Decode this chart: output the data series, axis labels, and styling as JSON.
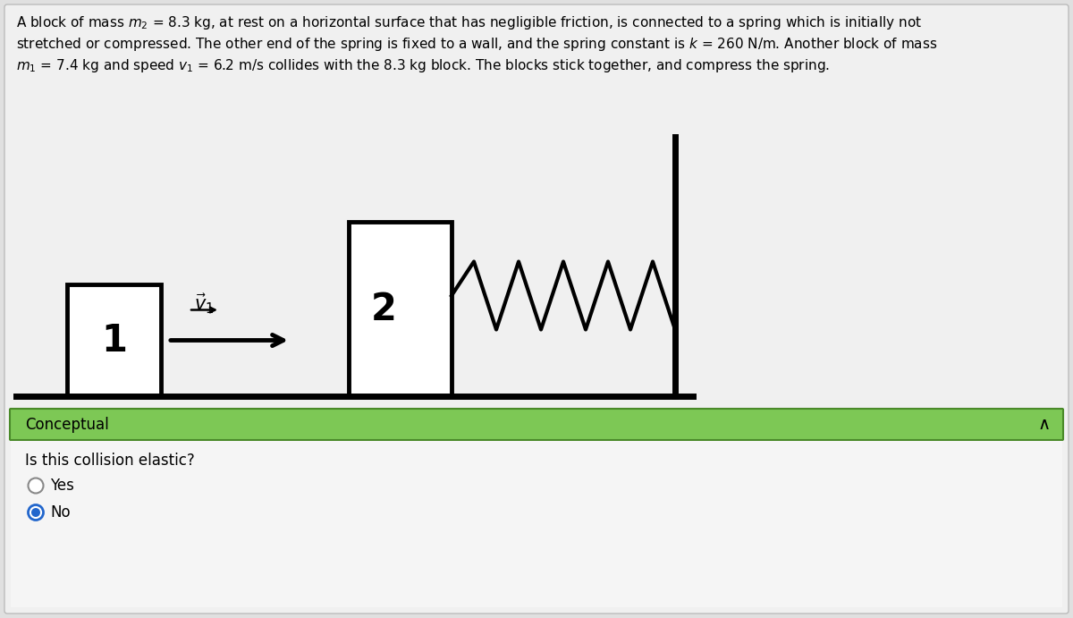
{
  "bg_color": "#e0e0e0",
  "panel_color": "#f0f0f0",
  "white": "#ffffff",
  "black": "#000000",
  "green_bar_color": "#7dc855",
  "green_bar_border": "#4a8a2a",
  "gray_radio": "#888888",
  "blue_radio": "#2266cc",
  "desc_line1": "A block of mass $m_2$ = 8.3 kg, at rest on a horizontal surface that has negligible friction, is connected to a spring which is initially not",
  "desc_line2": "stretched or compressed. The other end of the spring is fixed to a wall, and the spring constant is $k$ = 260 N/m. Another block of mass",
  "desc_line3": "$m_1$ = 7.4 kg and speed $v_1$ = 6.2 m/s collides with the 8.3 kg block. The blocks stick together, and compress the spring.",
  "conceptual_label": "Conceptual",
  "question": "Is this collision elastic?",
  "option_yes": "Yes",
  "option_no": "No"
}
